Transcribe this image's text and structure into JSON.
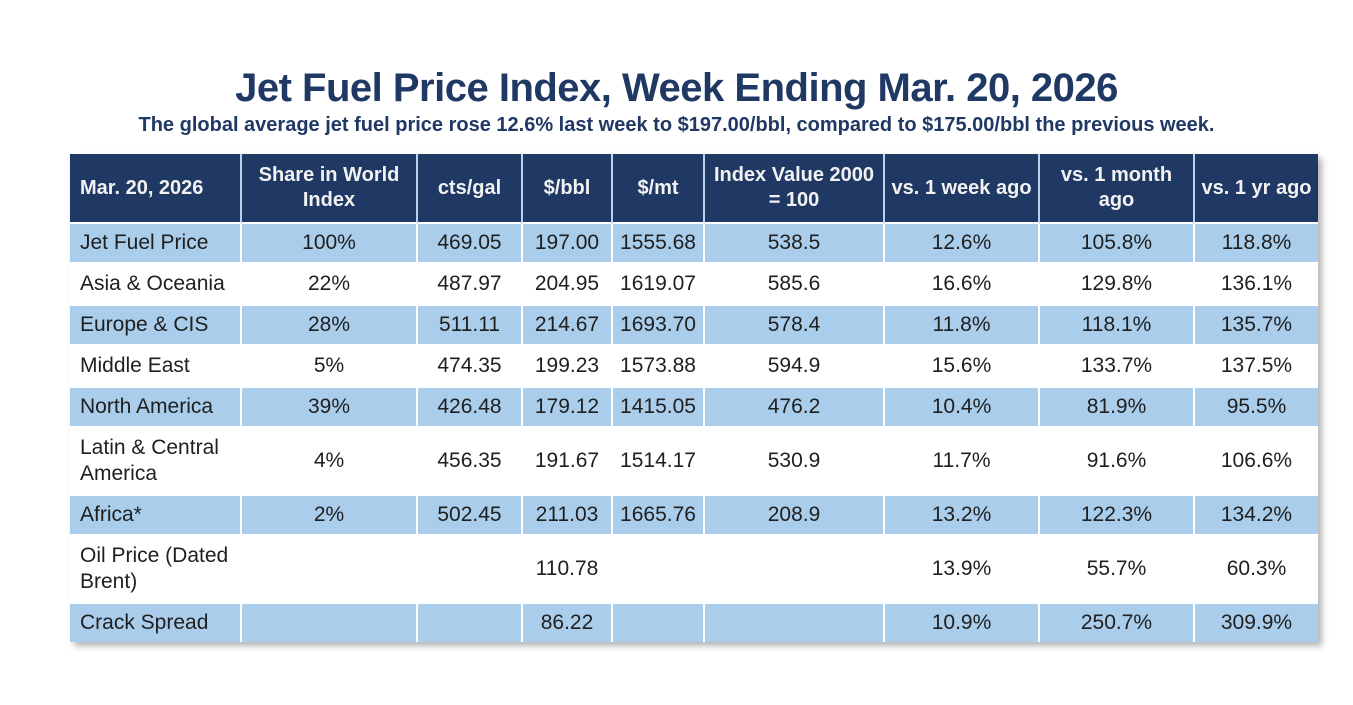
{
  "page": {
    "title": "Jet Fuel Price Index, Week Ending Mar. 20, 2026",
    "subtitle": "The global average jet fuel price rose 12.6% last week to $197.00/bbl, compared to $175.00/bbl the previous week."
  },
  "colors": {
    "header_bg": "#1F3864",
    "header_text": "#F2F2F2",
    "row_alt_bg": "#A9CDEA",
    "title_text": "#1F3864",
    "body_text": "#1F1F1F"
  },
  "chart_data": {
    "type": "table",
    "title": "Jet Fuel Price Index, Week Ending Mar. 20, 2026",
    "columns": [
      "Mar. 20, 2026",
      "Share in World Index",
      "cts/gal",
      "$/bbl",
      "$/mt",
      "Index Value 2000 = 100",
      "vs. 1 week ago",
      "vs. 1 month ago",
      "vs. 1 yr ago"
    ],
    "rows": [
      [
        "Jet Fuel Price",
        "100%",
        "469.05",
        "197.00",
        "1555.68",
        "538.5",
        "12.6%",
        "105.8%",
        "118.8%"
      ],
      [
        "Asia & Oceania",
        "22%",
        "487.97",
        "204.95",
        "1619.07",
        "585.6",
        "16.6%",
        "129.8%",
        "136.1%"
      ],
      [
        "Europe & CIS",
        "28%",
        "511.11",
        "214.67",
        "1693.70",
        "578.4",
        "11.8%",
        "118.1%",
        "135.7%"
      ],
      [
        "Middle East",
        "5%",
        "474.35",
        "199.23",
        "1573.88",
        "594.9",
        "15.6%",
        "133.7%",
        "137.5%"
      ],
      [
        "North America",
        "39%",
        "426.48",
        "179.12",
        "1415.05",
        "476.2",
        "10.4%",
        "81.9%",
        "95.5%"
      ],
      [
        "Latin & Central America",
        "4%",
        "456.35",
        "191.67",
        "1514.17",
        "530.9",
        "11.7%",
        "91.6%",
        "106.6%"
      ],
      [
        "Africa*",
        "2%",
        "502.45",
        "211.03",
        "1665.76",
        "208.9",
        "13.2%",
        "122.3%",
        "134.2%"
      ],
      [
        "Oil Price (Dated Brent)",
        "",
        "",
        "110.78",
        "",
        "",
        "13.9%",
        "55.7%",
        "60.3%"
      ],
      [
        "Crack Spread",
        "",
        "",
        "86.22",
        "",
        "",
        "10.9%",
        "250.7%",
        "309.9%"
      ]
    ],
    "layout_hints": {
      "alt_row_shading": "rows 1,3,5,7,9 light blue; others white",
      "first_column_align": "left",
      "other_columns_align": "center"
    }
  }
}
